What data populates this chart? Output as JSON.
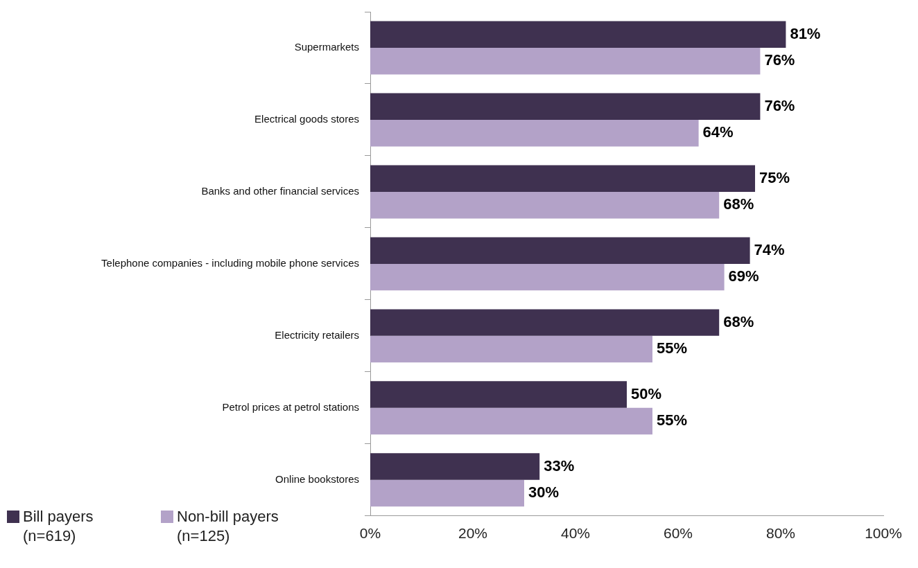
{
  "chart_data": {
    "type": "bar",
    "orientation": "horizontal",
    "categories": [
      "Supermarkets",
      "Electrical goods stores",
      "Banks and other financial services",
      "Telephone companies - including mobile phone services",
      "Electricity retailers",
      "Petrol prices at petrol stations",
      "Online bookstores"
    ],
    "series": [
      {
        "name": "Bill payers (n=619)",
        "color": "#3f3150",
        "values": [
          81,
          76,
          75,
          74,
          68,
          50,
          33
        ],
        "value_labels": [
          "81%",
          "76%",
          "75%",
          "74%",
          "68%",
          "50%",
          "33%"
        ]
      },
      {
        "name": "Non-bill payers (n=125)",
        "color": "#b3a2c8",
        "values": [
          76,
          64,
          68,
          69,
          55,
          55,
          30
        ],
        "value_labels": [
          "76%",
          "64%",
          "68%",
          "69%",
          "55%",
          "55%",
          "30%"
        ]
      }
    ],
    "xlim": [
      0,
      100
    ],
    "xticks": [
      {
        "value": 0,
        "label": "0%"
      },
      {
        "value": 20,
        "label": "20%"
      },
      {
        "value": 40,
        "label": "40%"
      },
      {
        "value": 60,
        "label": "60%"
      },
      {
        "value": 80,
        "label": "80%"
      },
      {
        "value": 100,
        "label": "100%"
      }
    ],
    "grid": false,
    "legend": "bottom left"
  }
}
